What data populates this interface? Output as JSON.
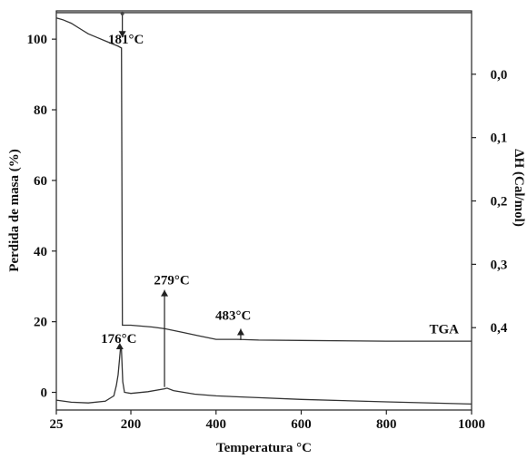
{
  "chart_data": {
    "type": "line",
    "xlabel": "Temperatura °C",
    "ylabel_left": "Perdida de masa (%)",
    "ylabel_right": "ΔH (Cal/mol)",
    "x_ticks": [
      25,
      200,
      400,
      600,
      800,
      1000
    ],
    "y_left_ticks": [
      0,
      20,
      40,
      60,
      80,
      100
    ],
    "y_right_ticks": [
      "0,0",
      "0,1",
      "0,2",
      "0,3",
      "0,4"
    ],
    "y_right_values": [
      0.0,
      0.1,
      0.2,
      0.3,
      0.4
    ],
    "xlim": [
      25,
      1000
    ],
    "ylim_left": [
      -5,
      108
    ],
    "ylim_right": [
      -0.1,
      0.53
    ],
    "grid": false,
    "series": [
      {
        "name": "TGA",
        "axis": "left",
        "x": [
          25,
          40,
          60,
          80,
          100,
          120,
          140,
          160,
          170,
          178,
          180,
          182,
          200,
          250,
          280,
          320,
          360,
          400,
          450,
          500,
          600,
          800,
          1000
        ],
        "y": [
          106,
          105.5,
          104.5,
          103,
          101.5,
          100.5,
          99.5,
          98.5,
          98,
          97.5,
          19,
          19,
          19,
          18.5,
          18,
          17,
          16,
          15,
          15,
          14.8,
          14.7,
          14.5,
          14.5
        ]
      },
      {
        "axis": "left",
        "x": [
          25,
          60,
          100,
          140,
          160,
          166,
          170,
          173,
          176,
          178,
          181,
          185,
          200,
          240,
          279,
          285,
          300,
          350,
          400,
          500,
          600,
          800,
          1000
        ],
        "y": [
          -2.2,
          -2.8,
          -3,
          -2.5,
          -1,
          2,
          5,
          9,
          13,
          12,
          3,
          0,
          -0.3,
          0.2,
          1,
          1.2,
          0.5,
          -0.5,
          -1,
          -1.5,
          -2,
          -2.7,
          -3.3
        ]
      }
    ],
    "baseline_y": 107.5,
    "annotations": [
      {
        "text": "181°C",
        "x": 181,
        "y": 97,
        "arrow_from": 107,
        "arrow_to": 100.5
      },
      {
        "text": "176°C",
        "x": 176,
        "y": 13
      },
      {
        "text": "279°C",
        "x": 279,
        "y": 29,
        "arrow_from": 1.5,
        "arrow_to": 29
      },
      {
        "text": "483°C",
        "x": 483,
        "y": 20
      },
      {
        "text": "TGA",
        "x": 1000,
        "y": 18
      }
    ]
  }
}
